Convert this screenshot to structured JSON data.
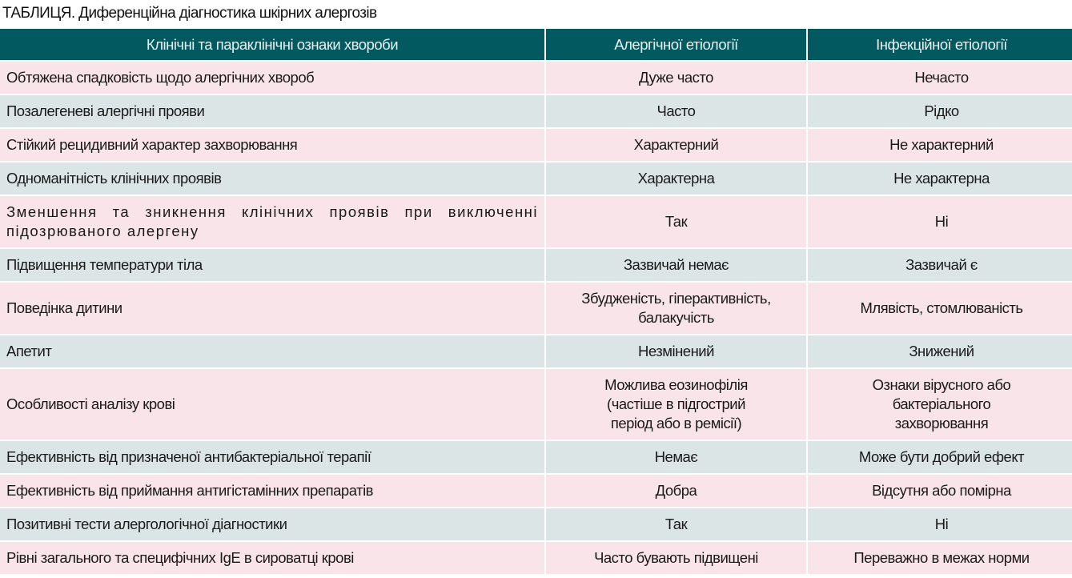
{
  "title": "ТАБЛИЦЯ. Диференційна діагностика шкірних алергозів",
  "headers": [
    "Клінічні та параклінічні ознаки хвороби",
    "Алергічної етіології",
    "Інфекційної етіології"
  ],
  "rows": [
    {
      "sign": "Обтяжена спадковість щодо алергічних хвороб",
      "allergic": "Дуже часто",
      "infectious": "Нечасто"
    },
    {
      "sign": "Позалегеневі алергічні прояви",
      "allergic": "Часто",
      "infectious": "Рідко"
    },
    {
      "sign": "Стійкий рецидивний характер захворювання",
      "allergic": "Характерний",
      "infectious": "Не характерний"
    },
    {
      "sign": "Одноманітність клінічних проявів",
      "allergic": "Характерна",
      "infectious": "Не характерна"
    },
    {
      "sign": "Зменшення та зникнення клінічних проявів при виключенні підозрюваного алергену",
      "allergic": "Так",
      "infectious": "Ні"
    },
    {
      "sign": "Підвищення температури тіла",
      "allergic": "Зазвичай немає",
      "infectious": "Зазвичай є"
    },
    {
      "sign": "Поведінка дитини",
      "allergic": "Збудженість, гіперактивність, балакучість",
      "infectious": "Млявість, стомлюваність"
    },
    {
      "sign": "Апетит",
      "allergic": "Незмінений",
      "infectious": "Знижений"
    },
    {
      "sign": "Особливості аналізу крові",
      "allergic": "Можлива еозинофілія (частіше в підгострий період або в ремісії)",
      "infectious": "Ознаки вірусного або бактеріального захворювання"
    },
    {
      "sign": "Ефективність від призначеної антибактеріальної терапії",
      "allergic": "Немає",
      "infectious": "Може бути добрий ефект"
    },
    {
      "sign": "Ефективність від приймання антигістамінних препаратів",
      "allergic": "Добра",
      "infectious": "Відсутня або помірна"
    },
    {
      "sign": "Позитивні тести алергологічної діагностики",
      "allergic": "Так",
      "infectious": "Ні"
    },
    {
      "sign": "Рівні загального та специфічних IgE в сироватці крові",
      "allergic": "Часто бувають підвищені",
      "infectious": "Переважно в межах норми"
    }
  ],
  "colors": {
    "header": "#02595f",
    "row_pink": "#f9e4ea",
    "row_gray": "#dce5e6"
  }
}
